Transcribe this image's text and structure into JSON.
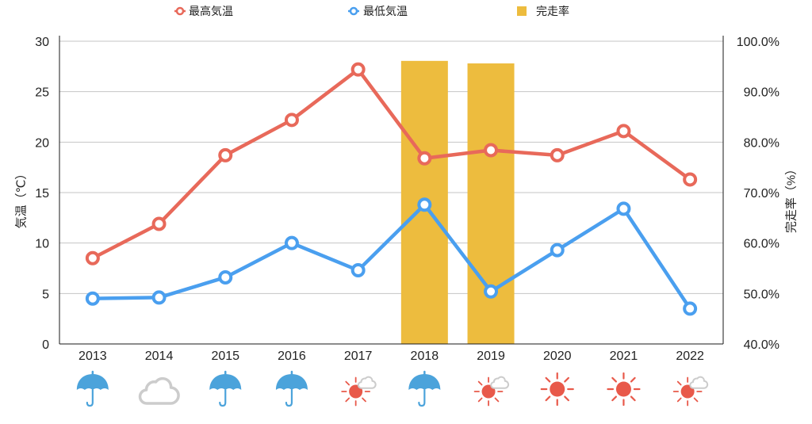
{
  "chart_data": {
    "type": "line",
    "categories": [
      "2013",
      "2014",
      "2015",
      "2016",
      "2017",
      "2018",
      "2019",
      "2020",
      "2021",
      "2022"
    ],
    "series": [
      {
        "name": "最高気温",
        "type": "line",
        "axis": "left",
        "color": "#E8695A",
        "values": [
          8.5,
          11.9,
          18.7,
          22.2,
          27.2,
          18.4,
          19.2,
          18.7,
          21.1,
          16.3
        ]
      },
      {
        "name": "最低気温",
        "type": "line",
        "axis": "left",
        "color": "#4A9FEF",
        "values": [
          4.5,
          4.6,
          6.6,
          10.0,
          7.3,
          13.8,
          5.2,
          9.3,
          13.4,
          3.5
        ]
      },
      {
        "name": "完走率",
        "type": "bar",
        "axis": "right",
        "color": "#EDBC3E",
        "values": [
          null,
          null,
          null,
          null,
          null,
          96.1,
          95.6,
          null,
          null,
          null
        ]
      }
    ],
    "ylabel": "気温（℃）",
    "ylim": [
      0,
      30
    ],
    "yticks": [
      "0",
      "5",
      "10",
      "15",
      "20",
      "25",
      "30"
    ],
    "y2label": "完走率（%）",
    "y2lim": [
      40,
      100
    ],
    "y2ticks": [
      "40.0%",
      "50.0%",
      "60.0%",
      "70.0%",
      "80.0%",
      "90.0%",
      "100.0%"
    ],
    "grid": true,
    "legend_position": "top"
  },
  "weather_icons": [
    "umbrella-icon",
    "cloud-icon",
    "umbrella-icon",
    "umbrella-icon",
    "sun-cloud-icon",
    "umbrella-icon",
    "sun-cloud-icon",
    "sun-icon",
    "sun-icon",
    "sun-cloud-icon"
  ],
  "colors": {
    "umbrella": "#4BA3DB",
    "cloud": "#CCCCCC",
    "sun": "#E8594A"
  }
}
